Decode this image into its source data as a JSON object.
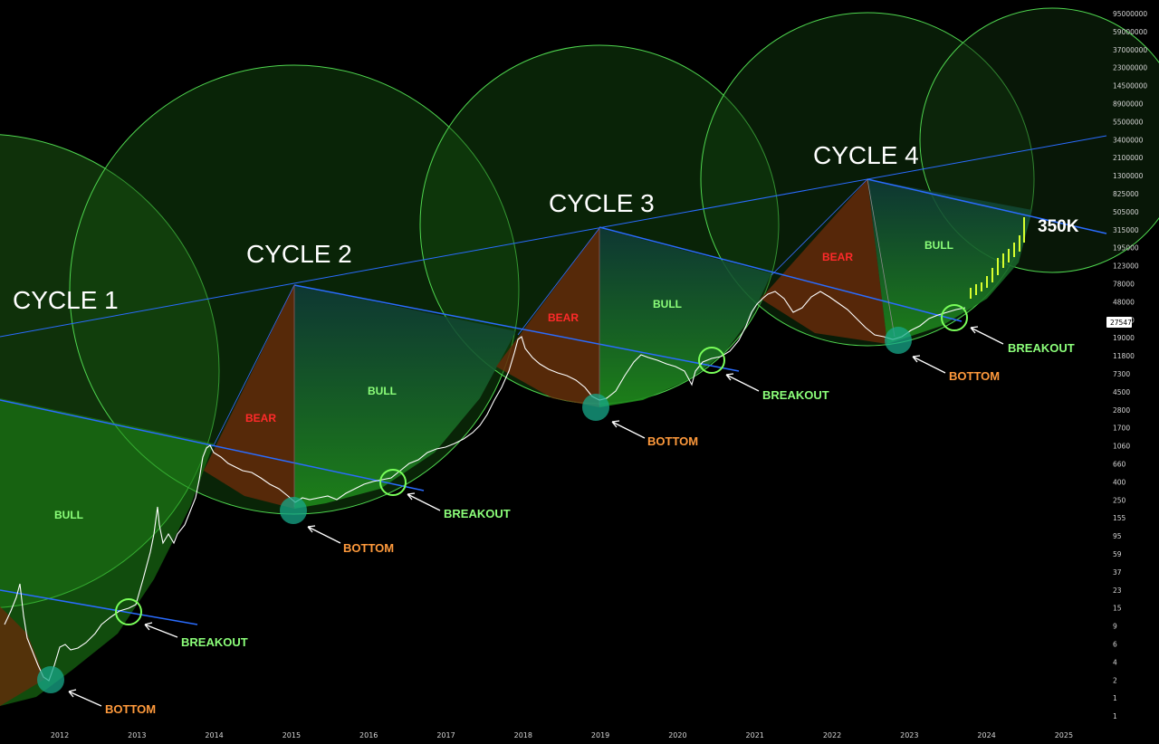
{
  "chart_data": {
    "type": "line",
    "title": "",
    "xlabel": "",
    "ylabel": "",
    "y_scale": "log",
    "x_ticks": [
      "2012",
      "2013",
      "2014",
      "2015",
      "2016",
      "2017",
      "2018",
      "2019",
      "2020",
      "2021",
      "2022",
      "2023",
      "2024",
      "2025"
    ],
    "y_ticks": [
      "95000000",
      "59000000",
      "37000000",
      "23000000",
      "14500000",
      "8900000",
      "5500000",
      "3400000",
      "2100000",
      "1300000",
      "825000",
      "505000",
      "315000",
      "195000",
      "123000",
      "78000",
      "48000",
      "30000",
      "19000",
      "11800",
      "7300",
      "4500",
      "2800",
      "1700",
      "1060",
      "660",
      "400",
      "250",
      "155",
      "95",
      "59",
      "37",
      "23",
      "15",
      "9",
      "6",
      "4",
      "2",
      "1",
      "1"
    ],
    "current_price": "27547",
    "target_label": "350K",
    "cycles": [
      {
        "name": "CYCLE 1",
        "bull_label": "BULL",
        "breakout_label": "BREAKOUT",
        "bottom_label": "BOTTOM"
      },
      {
        "name": "CYCLE 2",
        "bear_label": "BEAR",
        "bull_label": "BULL",
        "breakout_label": "BREAKOUT",
        "bottom_label": "BOTTOM"
      },
      {
        "name": "CYCLE 3",
        "bear_label": "BEAR",
        "bull_label": "BULL",
        "breakout_label": "BREAKOUT",
        "bottom_label": "BOTTOM"
      },
      {
        "name": "CYCLE 4",
        "bear_label": "BEAR",
        "bull_label": "BULL",
        "breakout_label": "BREAKOUT",
        "bottom_label": "BOTTOM"
      }
    ],
    "price_series": [
      {
        "x": "2011-09",
        "y": 5
      },
      {
        "x": "2012-01",
        "y": 6
      },
      {
        "x": "2012-06",
        "y": 6
      },
      {
        "x": "2012-12",
        "y": 13
      },
      {
        "x": "2013-04",
        "y": 150
      },
      {
        "x": "2013-07",
        "y": 90
      },
      {
        "x": "2013-12",
        "y": 1100
      },
      {
        "x": "2014-06",
        "y": 600
      },
      {
        "x": "2015-01",
        "y": 220
      },
      {
        "x": "2015-06",
        "y": 240
      },
      {
        "x": "2016-01",
        "y": 400
      },
      {
        "x": "2016-06",
        "y": 650
      },
      {
        "x": "2017-01",
        "y": 1000
      },
      {
        "x": "2017-06",
        "y": 2500
      },
      {
        "x": "2017-12",
        "y": 19000
      },
      {
        "x": "2018-06",
        "y": 7000
      },
      {
        "x": "2018-12",
        "y": 3500
      },
      {
        "x": "2019-06",
        "y": 11000
      },
      {
        "x": "2020-03",
        "y": 5000
      },
      {
        "x": "2020-06",
        "y": 9500
      },
      {
        "x": "2020-12",
        "y": 25000
      },
      {
        "x": "2021-04",
        "y": 60000
      },
      {
        "x": "2021-11",
        "y": 67000
      },
      {
        "x": "2022-06",
        "y": 20000
      },
      {
        "x": "2022-11",
        "y": 16000
      },
      {
        "x": "2023-06",
        "y": 27547
      },
      {
        "x": "2024-06",
        "y": 350000
      }
    ]
  },
  "colors": {
    "background": "#000000",
    "bull_fill": "#22a818",
    "bear_fill": "#8a3a12",
    "trend_line": "#2a6cff",
    "circle_stroke": "#5ee85e",
    "bottom_marker": "#17a88a",
    "projection": "#d8ff2e"
  }
}
